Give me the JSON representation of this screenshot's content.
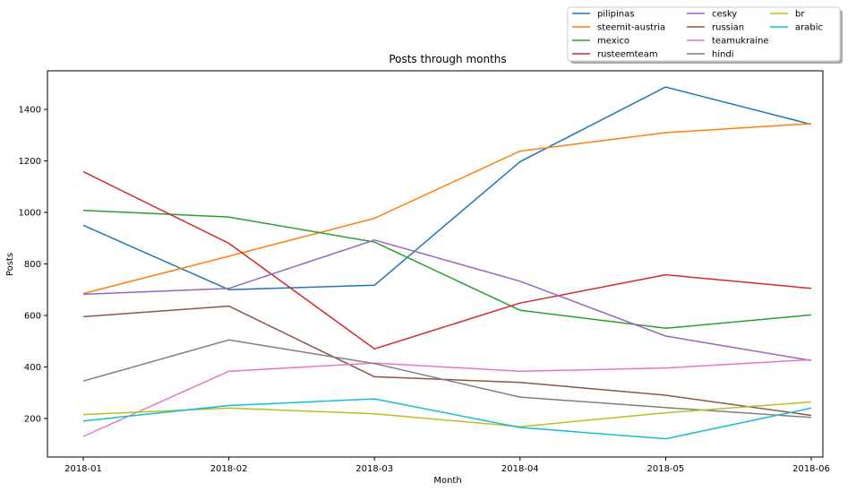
{
  "chart_data": {
    "type": "line",
    "title": "Posts through months",
    "xlabel": "Month",
    "ylabel": "Posts",
    "categories": [
      "2018-01",
      "2018-02",
      "2018-03",
      "2018-04",
      "2018-05",
      "2018-06"
    ],
    "ylim": [
      50,
      1550
    ],
    "yticks": [
      200,
      400,
      600,
      800,
      1000,
      1200,
      1400
    ],
    "grid": false,
    "legend_placement": "upper-right, outside plot, 3 columns",
    "series": [
      {
        "name": "pilipinas",
        "color": "#1f77b4",
        "values": [
          950,
          700,
          717,
          1197,
          1487,
          1342
        ]
      },
      {
        "name": "steemit-austria",
        "color": "#ff7f0e",
        "values": [
          685,
          830,
          977,
          1238,
          1310,
          1345
        ]
      },
      {
        "name": "mexico",
        "color": "#2ca02c",
        "values": [
          1008,
          982,
          885,
          620,
          550,
          602
        ]
      },
      {
        "name": "rusteemteam",
        "color": "#d62728",
        "values": [
          1158,
          880,
          470,
          648,
          758,
          705
        ]
      },
      {
        "name": "cesky",
        "color": "#9467bd",
        "values": [
          682,
          705,
          893,
          733,
          520,
          425
        ]
      },
      {
        "name": "russian",
        "color": "#8c564b",
        "values": [
          595,
          636,
          362,
          340,
          290,
          212
        ]
      },
      {
        "name": "teamukraine",
        "color": "#e377c2",
        "values": [
          130,
          383,
          415,
          383,
          396,
          428
        ]
      },
      {
        "name": "hindi",
        "color": "#7f7f7f",
        "values": [
          345,
          505,
          413,
          283,
          242,
          204
        ]
      },
      {
        "name": "br",
        "color": "#bcbd22",
        "values": [
          215,
          240,
          218,
          168,
          222,
          264
        ]
      },
      {
        "name": "arabic",
        "color": "#17becf",
        "values": [
          190,
          250,
          276,
          165,
          121,
          240
        ]
      }
    ]
  }
}
